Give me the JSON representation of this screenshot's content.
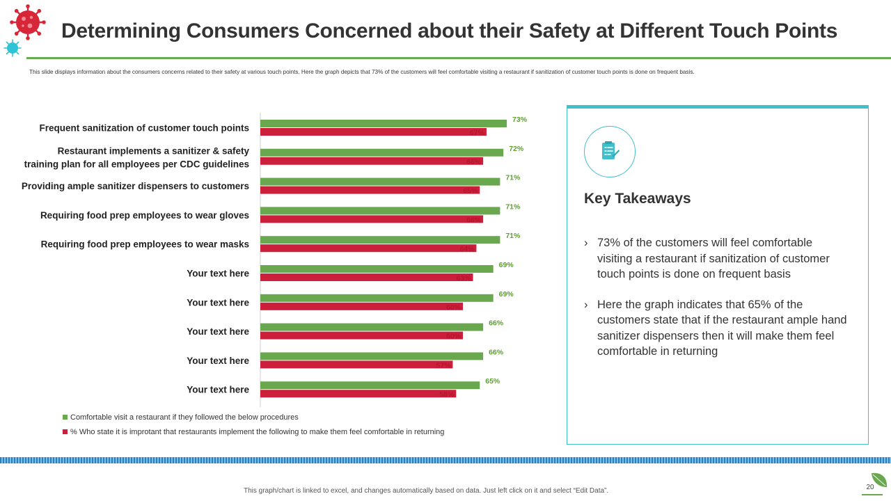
{
  "slide": {
    "title": "Determining Consumers Concerned about their Safety at Different Touch Points",
    "subtitle": "This slide displays information about the consumers concerns related to their safety at various touch points. Here the graph depicts that 73% of the customers will feel comfortable visiting a restaurant if sanitization of customer touch points is done on frequent basis.",
    "footer_note": "This graph/chart is linked to excel, and changes automatically based on data. Just left click on it and select “Edit Data”.",
    "page_number": "20"
  },
  "icons": {
    "logo": "virus-icon",
    "logo_small": "virus-small-icon",
    "panel": "checklist-icon",
    "footer": "leaf-icon"
  },
  "colors": {
    "green": "#6aa84f",
    "red": "#cc1f3c",
    "teal": "#41c0cc",
    "series1_label": "#5e9e32",
    "series2_label": "#b5162f"
  },
  "key_takeaways": {
    "heading": "Key Takeaways",
    "items": [
      {
        "bullet": "›",
        "text": "73% of the customers will feel comfortable visiting a restaurant if sanitization of customer touch points is done on frequent basis"
      },
      {
        "bullet": "›",
        "text": "Here the graph indicates that 65% of the customers state that if the restaurant ample hand sanitizer dispensers then it will make them feel comfortable in returning"
      }
    ]
  },
  "chart_data": {
    "type": "bar",
    "orientation": "horizontal",
    "title": "",
    "xlabel": "",
    "ylabel": "",
    "xlim": [
      0,
      80
    ],
    "grid": false,
    "legend_position": "bottom-left",
    "categories": [
      [
        "Frequent sanitization of customer touch points"
      ],
      [
        "Restaurant implements a sanitizer & safety",
        "training plan for all employees per CDC guidelines"
      ],
      [
        "Providing ample sanitizer dispensers to customers"
      ],
      [
        "Requiring food prep employees to wear gloves"
      ],
      [
        "Requiring food prep employees to wear masks"
      ],
      [
        "Your text here"
      ],
      [
        "Your text here"
      ],
      [
        "Your text here"
      ],
      [
        "Your text here"
      ],
      [
        "Your text here"
      ]
    ],
    "series": [
      {
        "name": "Comfortable visit a restaurant if they followed the below procedures",
        "color": "#6aa84f",
        "values": [
          73,
          72,
          71,
          71,
          71,
          69,
          69,
          66,
          66,
          65
        ],
        "labels": [
          "73%",
          "72%",
          "71%",
          "71%",
          "71%",
          "69%",
          "69%",
          "66%",
          "66%",
          "65%"
        ]
      },
      {
        "name": "% Who state it is improtant that restaurants implement the following to make them feel comfortable in returning",
        "color": "#cc1f3c",
        "values": [
          67,
          66,
          65,
          66,
          64,
          63,
          60,
          60,
          57,
          58
        ],
        "labels": [
          "67%",
          "66%",
          "65%",
          "66%",
          "64%",
          "63%",
          "60%",
          "60%",
          "57%",
          "58%"
        ]
      }
    ]
  }
}
